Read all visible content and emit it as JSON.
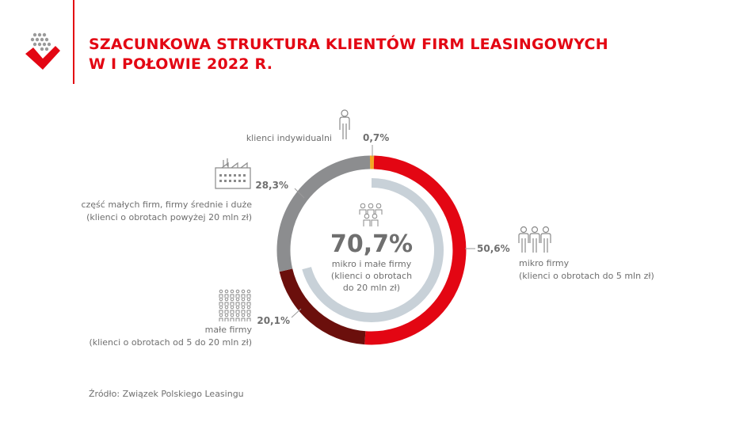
{
  "header": {
    "title_line1": "SZACUNKOWA STRUKTURA KLIENTÓW FIRM LEASINGOWYCH",
    "title_line2": "W I POŁOWIE 2022 R."
  },
  "colors": {
    "accent": "#e30613",
    "micro": "#e30613",
    "small": "#6b0f0c",
    "large": "#8c8d8f",
    "individual": "#f5a623",
    "inner_ring": "#c8d1d8",
    "text": "#6f6f6f"
  },
  "chart_data": {
    "type": "pie",
    "variant": "donut",
    "slices": [
      {
        "key": "individual",
        "value": 0.7,
        "label": "0,7%",
        "category_lines": [
          "klienci indywidualni"
        ],
        "color": "#f5a623",
        "icon": "person-icon"
      },
      {
        "key": "micro",
        "value": 50.6,
        "label": "50,6%",
        "category_lines": [
          "mikro firmy",
          "(klienci o obrotach do 5 mln zł)"
        ],
        "color": "#e30613",
        "icon": "group-icon"
      },
      {
        "key": "small",
        "value": 20.1,
        "label": "20,1%",
        "category_lines": [
          "małe firmy",
          "(klienci o obrotach od 5 do 20 mln zł)"
        ],
        "color": "#6b0f0c",
        "icon": "crowd-icon"
      },
      {
        "key": "large",
        "value": 28.3,
        "label": "28,3%",
        "category_lines": [
          "część małych firm, firmy średnie i duże",
          "(klienci o obrotach powyżej 20 mln zł)"
        ],
        "color": "#8c8d8f",
        "icon": "factory-icon"
      }
    ],
    "inner": {
      "value": 70.7,
      "label": "70,7%",
      "text_lines": [
        "mikro i małe firmy",
        "(klienci o obrotach",
        "do 20 mln zł)"
      ],
      "color": "#c8d1d8"
    }
  },
  "footer": {
    "source": "Źródło: Związek Polskiego Leasingu"
  }
}
